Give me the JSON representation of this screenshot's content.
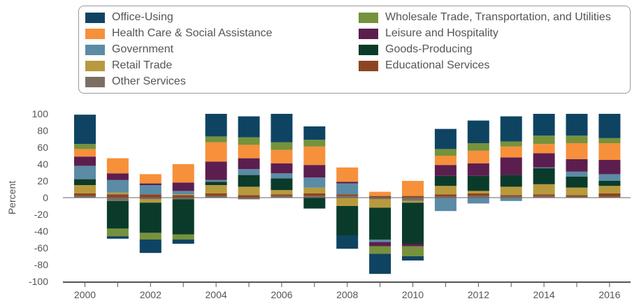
{
  "chart_data": {
    "type": "bar",
    "stacked": true,
    "ylabel": "Percent",
    "ylim": [
      -100,
      100
    ],
    "yticks": [
      100,
      80,
      60,
      40,
      20,
      0,
      -20,
      -40,
      -60,
      -80,
      -100
    ],
    "categories": [
      "2000",
      "2001",
      "2002",
      "2003",
      "2004",
      "2005",
      "2006",
      "2007",
      "2008",
      "2009",
      "2010",
      "2011",
      "2012",
      "2013",
      "2014",
      "2015",
      "2016"
    ],
    "xtick_labels": [
      "2000",
      "",
      "2002",
      "",
      "2004",
      "",
      "2006",
      "",
      "2008",
      "",
      "2010",
      "",
      "2012",
      "",
      "2014",
      "",
      "2016"
    ],
    "grid": false,
    "legend_position": "top",
    "series": [
      {
        "name": "Other Services",
        "color": "#7b6f63",
        "values": [
          2,
          -4,
          -2,
          -2,
          2,
          -2,
          2,
          2,
          2,
          -2,
          -4,
          1,
          2,
          1,
          2,
          1,
          1
        ]
      },
      {
        "name": "Educational Services",
        "color": "#8c4522",
        "values": [
          3,
          4,
          4,
          3,
          3,
          3,
          2,
          3,
          2,
          2,
          2,
          3,
          3,
          2,
          2,
          2,
          4
        ]
      },
      {
        "name": "Retail Trade",
        "color": "#b89a3e",
        "values": [
          10,
          2,
          -4,
          1,
          10,
          10,
          5,
          7,
          -10,
          -10,
          -2,
          10,
          3,
          10,
          12,
          9,
          9
        ]
      },
      {
        "name": "Goods-Producing",
        "color": "#0a3b2a",
        "values": [
          7,
          -33,
          -36,
          -42,
          4,
          14,
          14,
          -13,
          -35,
          -38,
          -49,
          12,
          18,
          14,
          19,
          13,
          6
        ]
      },
      {
        "name": "Government",
        "color": "#5b8ba5",
        "values": [
          16,
          15,
          11,
          4,
          2,
          7,
          6,
          12,
          13,
          -3,
          0,
          -16,
          -7,
          -4,
          1,
          6,
          8
        ]
      },
      {
        "name": "Leisure and Hospitality",
        "color": "#5c1e4f",
        "values": [
          11,
          8,
          2,
          10,
          22,
          13,
          12,
          15,
          2,
          -5,
          -3,
          13,
          15,
          21,
          17,
          15,
          17
        ]
      },
      {
        "name": "Health Care & Social Assistance",
        "color": "#f7903a",
        "values": [
          9,
          18,
          11,
          22,
          23,
          16,
          16,
          22,
          17,
          5,
          18,
          11,
          15,
          13,
          11,
          19,
          20
        ]
      },
      {
        "name": "Wholesale Trade, Transportation, and Utilities",
        "color": "#76923c",
        "values": [
          6,
          -9,
          -8,
          -6,
          7,
          9,
          9,
          8,
          0,
          -9,
          -12,
          8,
          9,
          6,
          10,
          9,
          6
        ]
      },
      {
        "name": "Office-Using",
        "color": "#0e4462",
        "values": [
          35,
          -3,
          -16,
          -5,
          27,
          25,
          34,
          16,
          -16,
          -24,
          -5,
          24,
          27,
          30,
          26,
          26,
          29
        ]
      }
    ]
  },
  "legend": {
    "left_column": [
      "Office-Using",
      "Health Care & Social Assistance",
      "Government",
      "Retail Trade",
      "Other Services"
    ],
    "right_column": [
      "Wholesale Trade, Transportation, and Utilities",
      "Leisure and Hospitality",
      "Goods-Producing",
      "Educational Services"
    ]
  }
}
